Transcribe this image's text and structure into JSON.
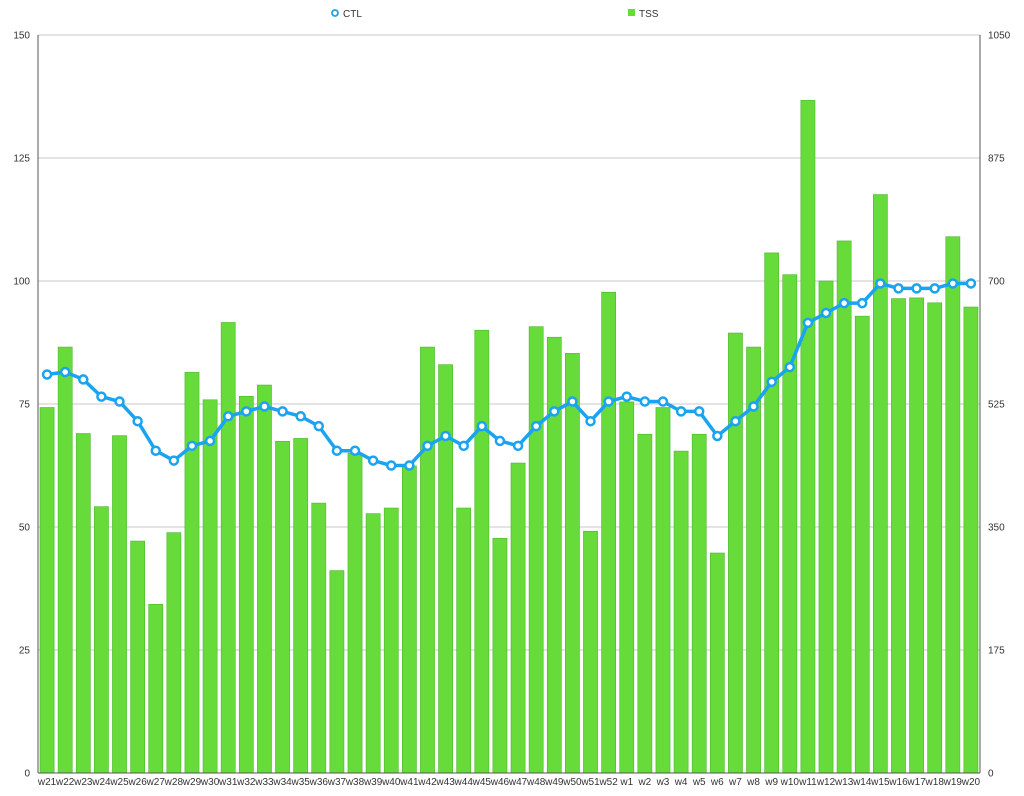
{
  "chart_data": {
    "type": "bar",
    "title": "",
    "xlabel": "",
    "ylabel": "",
    "y2label": "",
    "grid": true,
    "legend": {
      "position": "top",
      "items": [
        {
          "name": "CTL",
          "color": "#1AA3F0",
          "marker": "circle-line"
        },
        {
          "name": "TSS",
          "color": "#66DB3A",
          "marker": "square"
        }
      ]
    },
    "left_axis": {
      "min": 0,
      "max": 150,
      "ticks": [
        0,
        25,
        50,
        75,
        100,
        125,
        150
      ],
      "tick_labels": [
        "0",
        "25",
        "50",
        "75",
        "100",
        "125",
        "150"
      ]
    },
    "right_axis": {
      "min": 0,
      "max": 1050,
      "ticks": [
        0,
        175,
        350,
        525,
        700,
        875,
        1050
      ],
      "tick_labels": [
        "0",
        "175",
        "350",
        "525",
        "700",
        "875",
        "1050"
      ]
    },
    "categories": [
      "w21",
      "w22",
      "w23",
      "w24",
      "w25",
      "w26",
      "w27",
      "w28",
      "w29",
      "w30",
      "w31",
      "w32",
      "w33",
      "w34",
      "w35",
      "w36",
      "w37",
      "w38",
      "w39",
      "w40",
      "w41",
      "w42",
      "w43",
      "w44",
      "w45",
      "w46",
      "w47",
      "w48",
      "w49",
      "w50",
      "w51",
      "w52",
      "w1",
      "w2",
      "w3",
      "w4",
      "w5",
      "w6",
      "w7",
      "w8",
      "w9",
      "w10",
      "w11",
      "w12",
      "w13",
      "w14",
      "w15",
      "w16",
      "w17",
      "w18",
      "w19",
      "w20"
    ],
    "series": [
      {
        "name": "TSS",
        "type": "bar",
        "axis": "right",
        "color": "#66DB3A",
        "values": [
          520,
          606,
          483,
          379,
          480,
          330,
          240,
          342,
          570,
          531,
          641,
          536,
          552,
          472,
          476,
          384,
          288,
          455,
          369,
          377,
          437,
          606,
          581,
          377,
          630,
          334,
          441,
          635,
          620,
          597,
          344,
          684,
          528,
          482,
          520,
          458,
          482,
          313,
          626,
          606,
          740,
          709,
          957,
          700,
          757,
          650,
          823,
          675,
          676,
          669,
          763,
          663
        ]
      },
      {
        "name": "CTL",
        "type": "line",
        "axis": "left",
        "color": "#1AA3F0",
        "values": [
          81,
          81.5,
          80,
          76.5,
          75.5,
          71.5,
          65.5,
          63.5,
          66.5,
          67.5,
          72.5,
          73.5,
          74.5,
          73.5,
          72.5,
          70.5,
          65.5,
          65.5,
          63.5,
          62.5,
          62.5,
          66.5,
          68.5,
          66.5,
          70.5,
          67.5,
          66.5,
          70.5,
          73.5,
          75.5,
          71.5,
          75.5,
          76.5,
          75.5,
          75.5,
          73.5,
          73.5,
          68.5,
          71.5,
          74.5,
          79.5,
          82.5,
          91.5,
          93.5,
          95.5,
          95.5,
          99.5,
          98.5,
          98.5,
          98.5,
          99.5,
          99.5
        ]
      }
    ]
  }
}
